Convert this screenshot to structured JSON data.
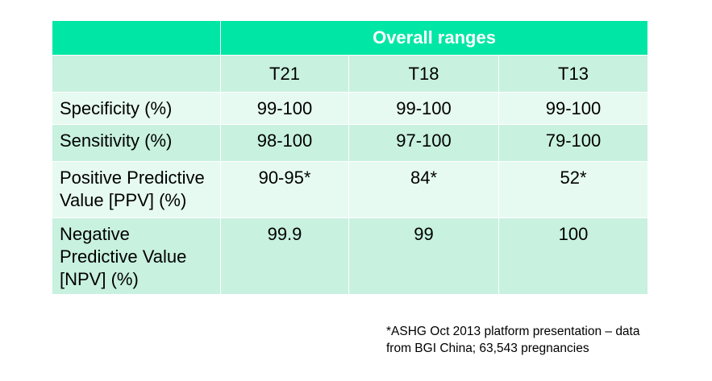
{
  "table": {
    "group_header": "Overall ranges",
    "columns": [
      "T21",
      "T18",
      "T13"
    ],
    "rows": [
      {
        "label_lines": [
          "Specificity (%)"
        ],
        "values": [
          "99-100",
          "99-100",
          "99-100"
        ]
      },
      {
        "label_lines": [
          "Sensitivity (%)"
        ],
        "values": [
          "98-100",
          "97-100",
          "79-100"
        ]
      },
      {
        "label_lines": [
          "Positive Predictive",
          "Value [PPV] (%)"
        ],
        "values": [
          "90-95*",
          "84*",
          "52*"
        ]
      },
      {
        "label_lines": [
          "Negative",
          "Predictive Value",
          "[NPV] (%)"
        ],
        "values": [
          "99.9",
          "99",
          "100"
        ]
      }
    ]
  },
  "footnote": {
    "lines": [
      "*ASHG Oct 2013 platform presentation  – data",
      "from BGI China; 63,543 pregnancies"
    ]
  },
  "colors": {
    "header_bg": "#00e6a5",
    "row_dark": "#c8f1df",
    "row_light": "#e6faf1"
  }
}
